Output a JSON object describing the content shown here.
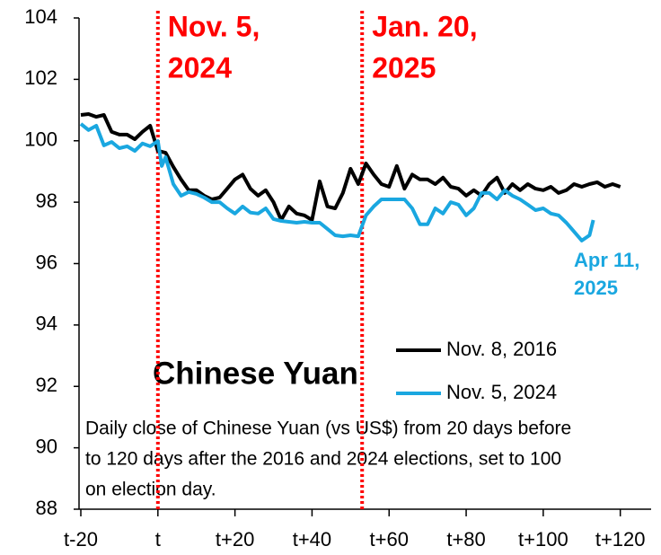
{
  "chart_data": {
    "type": "line",
    "title": "Chinese Yuan",
    "description": [
      "Daily close of Chinese Yuan (vs US$) from 20 days before",
      "to 120 days after the 2016 and 2024 elections, set to 100",
      "on election day."
    ],
    "xlim": [
      -20,
      128
    ],
    "ylim": [
      88,
      104
    ],
    "yticks": [
      88,
      90,
      92,
      94,
      96,
      98,
      100,
      102,
      104
    ],
    "xticks": [
      {
        "value": -20,
        "label": "t-20"
      },
      {
        "value": 0,
        "label": "t"
      },
      {
        "value": 20,
        "label": "t+20"
      },
      {
        "value": 40,
        "label": "t+40"
      },
      {
        "value": 60,
        "label": "t+60"
      },
      {
        "value": 80,
        "label": "t+80"
      },
      {
        "value": 100,
        "label": "t+100"
      },
      {
        "value": 120,
        "label": "t+120"
      }
    ],
    "vlines": [
      {
        "x": 0,
        "label": [
          "Nov. 5,",
          "2024"
        ],
        "color": "#ff0000"
      },
      {
        "x": 53,
        "label": [
          "Jan. 20,",
          "2025"
        ],
        "color": "#ff0000"
      }
    ],
    "end_label": {
      "text": [
        "Apr 11,",
        "2025"
      ],
      "color": "#1aa7e0"
    },
    "series": [
      {
        "name": "Nov. 8, 2016",
        "color": "#000000",
        "x": [
          -20,
          -18,
          -16,
          -14,
          -12,
          -10,
          -8,
          -6,
          -4,
          -2,
          0,
          2,
          4,
          6,
          8,
          10,
          12,
          14,
          16,
          18,
          20,
          22,
          24,
          26,
          28,
          30,
          32,
          34,
          36,
          38,
          40,
          42,
          44,
          46,
          48,
          50,
          52,
          54,
          56,
          58,
          60,
          62,
          64,
          66,
          68,
          70,
          72,
          74,
          76,
          78,
          80,
          82,
          84,
          86,
          88,
          90,
          92,
          94,
          96,
          98,
          100,
          102,
          104,
          106,
          108,
          110,
          112,
          114,
          116,
          118,
          120
        ],
        "values": [
          100.84,
          100.87,
          100.78,
          100.84,
          100.29,
          100.2,
          100.2,
          100.05,
          100.29,
          100.49,
          99.67,
          99.61,
          99.15,
          98.74,
          98.39,
          98.39,
          98.21,
          98.09,
          98.15,
          98.44,
          98.74,
          98.9,
          98.44,
          98.21,
          98.39,
          98.0,
          97.42,
          97.86,
          97.63,
          97.57,
          97.42,
          98.68,
          97.86,
          97.8,
          98.3,
          99.09,
          98.59,
          99.26,
          98.9,
          98.59,
          98.5,
          99.18,
          98.44,
          98.9,
          98.74,
          98.74,
          98.59,
          98.8,
          98.5,
          98.44,
          98.21,
          98.39,
          98.21,
          98.59,
          98.8,
          98.3,
          98.59,
          98.39,
          98.59,
          98.44,
          98.39,
          98.5,
          98.3,
          98.39,
          98.59,
          98.5,
          98.59,
          98.65,
          98.5,
          98.59,
          98.5
        ]
      },
      {
        "name": "Nov. 5, 2024",
        "color": "#1aa7e0",
        "x": [
          -20,
          -18,
          -16,
          -14,
          -12,
          -10,
          -8,
          -6,
          -4,
          -2,
          0,
          1,
          2,
          4,
          6,
          8,
          10,
          12,
          14,
          16,
          18,
          20,
          22,
          24,
          26,
          28,
          30,
          32,
          34,
          36,
          38,
          40,
          42,
          44,
          46,
          48,
          50,
          52,
          54,
          56,
          58,
          60,
          62,
          64,
          66,
          68,
          70,
          72,
          74,
          76,
          78,
          80,
          82,
          84,
          86,
          88,
          90,
          92,
          94,
          96,
          98,
          100,
          102,
          104,
          106,
          108,
          110,
          112,
          113
        ],
        "values": [
          100.55,
          100.35,
          100.49,
          99.85,
          99.96,
          99.76,
          99.82,
          99.67,
          99.91,
          99.82,
          99.99,
          99.18,
          99.47,
          98.59,
          98.21,
          98.33,
          98.27,
          98.15,
          98.0,
          98.0,
          97.8,
          97.63,
          97.86,
          97.66,
          97.63,
          97.8,
          97.45,
          97.39,
          97.36,
          97.33,
          97.36,
          97.33,
          97.33,
          97.13,
          96.92,
          96.89,
          96.92,
          96.89,
          97.57,
          97.86,
          98.09,
          98.09,
          98.09,
          98.09,
          97.8,
          97.28,
          97.28,
          97.8,
          97.63,
          98.0,
          97.92,
          97.57,
          97.8,
          98.3,
          98.3,
          98.09,
          98.39,
          98.21,
          98.09,
          97.92,
          97.74,
          97.8,
          97.63,
          97.57,
          97.33,
          97.04,
          96.75,
          96.92,
          97.42
        ]
      }
    ]
  }
}
